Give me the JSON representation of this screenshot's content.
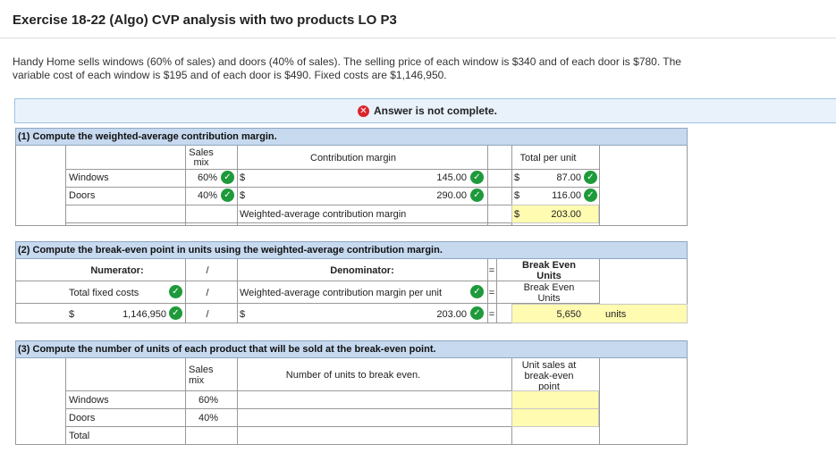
{
  "header": {
    "title": "Exercise 18-22 (Algo) CVP analysis with two products LO P3",
    "problem_text": "Handy Home sells windows (60% of sales) and doors (40% of sales). The selling price of each window is $340 and of each door is $780. The variable cost of each window is $195 and of each door is $490. Fixed costs are $1,146,950."
  },
  "banner": {
    "icon": "x-circle-icon",
    "text": "Answer is not complete."
  },
  "part1": {
    "heading": "(1) Compute the weighted-average contribution margin.",
    "col_sales_mix": "Sales mix",
    "col_cm": "Contribution margin",
    "col_total": "Total per unit",
    "rows": [
      {
        "label": "Windows",
        "mix": "60%",
        "dollar": "$",
        "cm": "145.00",
        "total_dollar": "$",
        "total": "87.00"
      },
      {
        "label": "Doors",
        "mix": "40%",
        "dollar": "$",
        "cm": "290.00",
        "total_dollar": "$",
        "total": "116.00"
      }
    ],
    "wacm_label": "Weighted-average contribution margin",
    "wacm_dollar": "$",
    "wacm_value": "203.00"
  },
  "part2": {
    "heading": "(2) Compute the break-even point in units using the weighted-average contribution margin.",
    "numerator": "Numerator:",
    "slash": "/",
    "denominator": "Denominator:",
    "equals": "=",
    "result_head": "Break Even Units",
    "num_label": "Total fixed costs",
    "den_label": "Weighted-average contribution margin per unit",
    "result_label": "Break Even Units",
    "num_dollar": "$",
    "num_value": "1,146,950",
    "den_dollar": "$",
    "den_value": "203.00",
    "result_value": "5,650",
    "units": "units"
  },
  "part3": {
    "heading": "(3) Compute the number of units of each product that will be sold at the break-even point.",
    "col_sales_mix": "Sales mix",
    "col_units": "Number of units to break even.",
    "col_result": "Unit sales at break-even point",
    "rows": [
      {
        "label": "Windows",
        "mix": "60%"
      },
      {
        "label": "Doors",
        "mix": "40%"
      },
      {
        "label": "Total",
        "mix": ""
      }
    ]
  },
  "colors": {
    "check": "#1e9a3a",
    "error": "#d9262c",
    "section_header": "#c6d9ef",
    "answer_cell": "#fffbb0"
  }
}
